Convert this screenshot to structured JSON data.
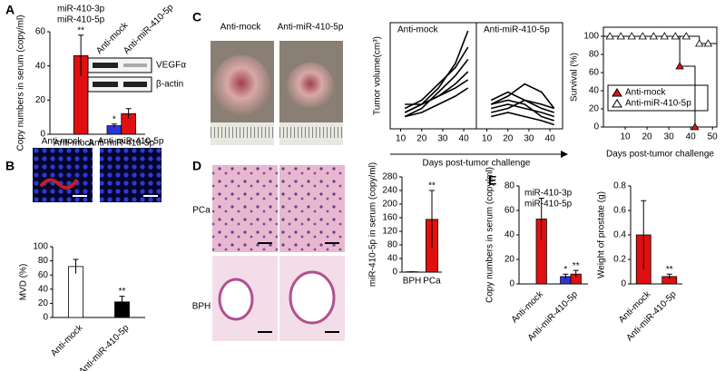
{
  "panel_labels": [
    "A",
    "B",
    "C",
    "D",
    "E"
  ],
  "images": {
    "A": {
      "blot_columns": [
        "Anti-mock",
        "Anti-miR-410-5p"
      ],
      "blot_rows": [
        "VEGFα",
        "β-actin"
      ]
    },
    "B": {
      "titles": [
        "Anti-mock",
        "Anti-miR-410-5p"
      ]
    },
    "C": {
      "titles": [
        "Anti-mock",
        "Anti-miR-410-5p"
      ]
    },
    "D": {
      "rows": [
        "PCa",
        "BPH"
      ]
    }
  },
  "chart_data": [
    {
      "type": "bar",
      "ylabel": "Copy numbers in serum (copy/ml)",
      "categories": [
        "Anti-mock",
        "Anti-miR-410-5p"
      ],
      "ylim": [
        0,
        60
      ],
      "yticks": [
        0,
        20,
        40,
        60
      ],
      "legend": "above",
      "series": [
        {
          "name": "miR-410-3p",
          "color": "#2b35d8",
          "values": [
            0,
            5
          ],
          "errors": [
            0,
            1
          ],
          "significance": [
            null,
            "*"
          ]
        },
        {
          "name": "miR-410-5p",
          "color": "#e01010",
          "values": [
            46,
            12
          ],
          "errors": [
            12,
            3
          ],
          "significance": [
            "**",
            null
          ]
        }
      ]
    },
    {
      "type": "bar",
      "ylabel": "MVD (%)",
      "categories": [
        "Anti-mock",
        "Anti-miR-410-5p"
      ],
      "ylim": [
        0,
        100
      ],
      "yticks": [
        0,
        20,
        40,
        60,
        80,
        100
      ],
      "rotate_labels": true,
      "series": [
        {
          "colors": [
            "#ffffff",
            "#000000"
          ],
          "values": [
            72,
            22
          ],
          "errors": [
            10,
            8
          ],
          "significance": [
            null,
            "**"
          ]
        }
      ]
    },
    {
      "type": "line",
      "ylabel": "Tumor volume(cm³)",
      "xlabel": "Days post-tumor challenge",
      "x": [
        12,
        20,
        28,
        36,
        42
      ],
      "xlim": [
        5,
        46
      ],
      "xticks": [
        10,
        20,
        30,
        40
      ],
      "ylim": [
        0,
        2.6
      ],
      "facets": [
        {
          "title": "Anti-mock",
          "series": [
            {
              "color": "#000000",
              "values": [
                0.4,
                0.6,
                1.0,
                1.6,
                2.4
              ]
            },
            {
              "color": "#000000",
              "values": [
                0.5,
                0.7,
                1.1,
                1.5,
                2.0
              ]
            },
            {
              "color": "#000000",
              "values": [
                0.3,
                0.5,
                0.9,
                1.3,
                1.7
              ]
            },
            {
              "color": "#000000",
              "values": [
                0.6,
                0.6,
                0.8,
                1.1,
                1.4
              ]
            },
            {
              "color": "#000000",
              "values": [
                0.4,
                0.6,
                0.8,
                1.0,
                1.2
              ]
            },
            {
              "color": "#000000",
              "values": [
                0.3,
                0.4,
                0.6,
                0.8,
                1.0
              ]
            }
          ]
        },
        {
          "title": "Anti-miR-410-5p",
          "series": [
            {
              "color": "#000000",
              "values": [
                0.7,
                0.9,
                0.7,
                0.5,
                0.4
              ]
            },
            {
              "color": "#000000",
              "values": [
                0.6,
                0.8,
                1.1,
                0.9,
                0.5
              ]
            },
            {
              "color": "#000000",
              "values": [
                0.5,
                0.6,
                0.5,
                0.4,
                0.3
              ]
            },
            {
              "color": "#000000",
              "values": [
                0.4,
                0.5,
                0.7,
                0.6,
                0.5
              ]
            },
            {
              "color": "#000000",
              "values": [
                0.3,
                0.4,
                0.3,
                0.2,
                0.1
              ]
            },
            {
              "color": "#000000",
              "values": [
                0.6,
                0.7,
                0.6,
                0.3,
                0.2
              ]
            }
          ]
        }
      ]
    },
    {
      "type": "step",
      "ylabel": "Survival (%)",
      "xlabel": "Days post-tumor challenge",
      "xlim": [
        0,
        52
      ],
      "xticks": [
        10,
        20,
        30,
        40,
        50
      ],
      "ylim": [
        0,
        110
      ],
      "yticks": [
        0,
        20,
        40,
        60,
        80,
        100
      ],
      "legend": "bottom-left",
      "series": [
        {
          "name": "Anti-mock",
          "color": "#e01010",
          "x": [
            35,
            42
          ],
          "values": [
            67,
            0
          ]
        },
        {
          "name": "Anti-miR-410-5p",
          "color": "#ffffff",
          "x": [
            3,
            8,
            13,
            18,
            23,
            28,
            33,
            38,
            44,
            48
          ],
          "values": [
            100,
            100,
            100,
            100,
            100,
            100,
            100,
            100,
            92,
            92
          ]
        }
      ]
    },
    {
      "type": "bar",
      "ylabel": "miR-410-5p in serum (copy/ml)",
      "categories": [
        "BPH",
        "PCa"
      ],
      "ylim": [
        0,
        280
      ],
      "yticks": [
        0,
        40,
        80,
        120,
        160,
        200,
        240,
        280
      ],
      "series": [
        {
          "color": "#e01010",
          "values": [
            1,
            155
          ],
          "errors": [
            0,
            85
          ],
          "significance": [
            null,
            "**"
          ]
        }
      ]
    },
    {
      "type": "bar",
      "ylabel": "Copy numbers in serum (copy/ml)",
      "categories": [
        "Anti-mock",
        "Anti-miR-410-5p"
      ],
      "ylim": [
        0,
        80
      ],
      "yticks": [
        0,
        20,
        40,
        60,
        80
      ],
      "legend": "top-right",
      "rotate_labels": true,
      "series": [
        {
          "name": "miR-410-3p",
          "color": "#2b35d8",
          "values": [
            0,
            6
          ],
          "errors": [
            0,
            2
          ],
          "significance": [
            null,
            "*"
          ]
        },
        {
          "name": "miR-410-5p",
          "color": "#e01010",
          "values": [
            53,
            8
          ],
          "errors": [
            17,
            3
          ],
          "significance": [
            null,
            "**"
          ]
        }
      ]
    },
    {
      "type": "bar",
      "ylabel": "Weight of prostate (g)",
      "categories": [
        "Anti-mock",
        "Anti-miR-410-5p"
      ],
      "ylim": [
        0,
        0.8
      ],
      "yticks": [
        0,
        0.2,
        0.4,
        0.6,
        0.8
      ],
      "rotate_labels": true,
      "series": [
        {
          "color": "#e01010",
          "values": [
            0.4,
            0.06
          ],
          "errors": [
            0.28,
            0.02
          ],
          "significance": [
            null,
            "**"
          ]
        }
      ]
    }
  ]
}
